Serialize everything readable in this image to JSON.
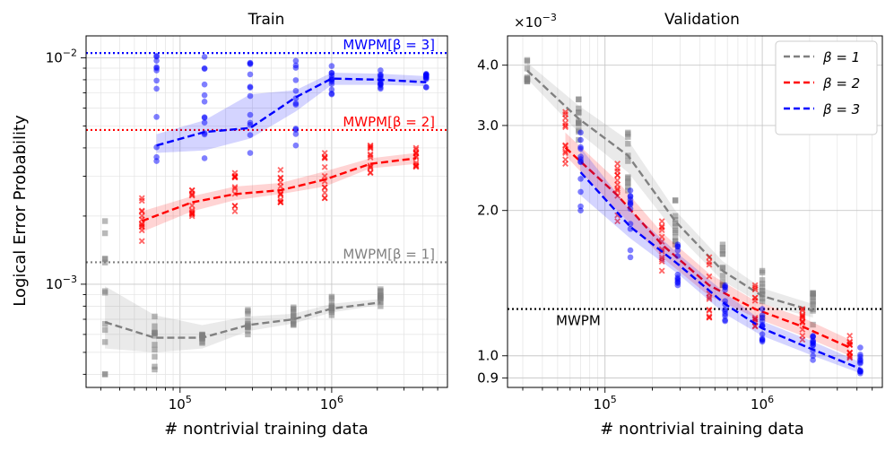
{
  "colors": {
    "gray": "#808080",
    "red": "#ff0000",
    "blue": "#0000ff",
    "black": "#000000"
  },
  "chart_data": [
    {
      "type": "line",
      "panel": "left",
      "title": "Train",
      "xlabel": "# nontrivial training data",
      "ylabel": "Logical Error Probability",
      "xscale": "log",
      "yscale": "log",
      "xlim": [
        24000,
        5800000
      ],
      "ylim": [
        0.00035,
        0.0125
      ],
      "xticks": [
        {
          "value": 100000,
          "base": "10",
          "exp": "5"
        },
        {
          "value": 1000000,
          "base": "10",
          "exp": "6"
        }
      ],
      "yticks": [
        {
          "value": 0.001,
          "base": "10",
          "exp": "−3"
        },
        {
          "value": 0.01,
          "base": "10",
          "exp": "−2"
        }
      ],
      "reference_lines": [
        {
          "label": "MWPM[β = 3]",
          "value": 0.0105,
          "color": "#0000ff"
        },
        {
          "label": "MWPM[β = 2]",
          "value": 0.0048,
          "color": "#ff0000"
        },
        {
          "label": "MWPM[β = 1]",
          "value": 0.00125,
          "color": "#808080"
        }
      ],
      "series": [
        {
          "name": "β = 1",
          "color": "#808080",
          "marker": "square",
          "x": [
            32000,
            68000,
            140000,
            280000,
            560000,
            1000000,
            2100000
          ],
          "y": [
            0.00068,
            0.00058,
            0.00058,
            0.00066,
            0.0007,
            0.00078,
            0.00083
          ],
          "lower": [
            0.00052,
            0.0005,
            0.00052,
            0.00062,
            0.00067,
            0.00075,
            0.00081
          ],
          "upper": [
            0.00098,
            0.00073,
            0.00066,
            0.00072,
            0.00074,
            0.00082,
            0.00086
          ],
          "scatter_min": [
            0.0004,
            0.00042,
            0.00055,
            0.0006,
            0.00066,
            0.00073,
            0.0008
          ],
          "scatter_max": [
            0.0019,
            0.00072,
            0.0006,
            0.00077,
            0.00079,
            0.00088,
            0.00095
          ]
        },
        {
          "name": "β = 2",
          "color": "#ff0000",
          "marker": "x",
          "x": [
            56000,
            120000,
            230000,
            460000,
            900000,
            1800000,
            3600000
          ],
          "y": [
            0.0019,
            0.0023,
            0.0025,
            0.0026,
            0.0029,
            0.0034,
            0.0036
          ],
          "lower": [
            0.0017,
            0.0021,
            0.00235,
            0.0025,
            0.0027,
            0.00325,
            0.0034
          ],
          "upper": [
            0.0021,
            0.00245,
            0.0027,
            0.0028,
            0.00315,
            0.0036,
            0.0038
          ],
          "scatter_min": [
            0.00155,
            0.002,
            0.0021,
            0.0023,
            0.0024,
            0.0031,
            0.0033
          ],
          "scatter_max": [
            0.0024,
            0.0026,
            0.0031,
            0.0032,
            0.0038,
            0.0041,
            0.004
          ]
        },
        {
          "name": "β = 3",
          "color": "#0000ff",
          "marker": "circle",
          "x": [
            70000,
            145000,
            290000,
            580000,
            1000000,
            2100000,
            4200000
          ],
          "y": [
            0.0041,
            0.0047,
            0.0049,
            0.0067,
            0.0081,
            0.008,
            0.0078
          ],
          "lower": [
            0.0038,
            0.0039,
            0.0044,
            0.0058,
            0.0076,
            0.0076,
            0.0075
          ],
          "upper": [
            0.0046,
            0.0053,
            0.0069,
            0.0072,
            0.0086,
            0.0085,
            0.0083
          ],
          "scatter_min": [
            0.0035,
            0.0036,
            0.0038,
            0.0041,
            0.0069,
            0.0073,
            0.0074
          ],
          "scatter_max": [
            0.0102,
            0.0101,
            0.0095,
            0.0097,
            0.0092,
            0.0088,
            0.0085
          ]
        }
      ]
    },
    {
      "type": "line",
      "panel": "right",
      "title": "Validation",
      "xlabel": "# nontrivial training data",
      "ylabel": "",
      "xscale": "log",
      "yscale": "log",
      "ylabel_multiplier": {
        "base": "×10",
        "exp": "−3"
      },
      "xlim": [
        24000,
        5800000
      ],
      "ylim": [
        0.00086,
        0.0046
      ],
      "xticks": [
        {
          "value": 100000,
          "base": "10",
          "exp": "5"
        },
        {
          "value": 1000000,
          "base": "10",
          "exp": "6"
        }
      ],
      "yticks": [
        {
          "value": 0.0009,
          "label": "0.9"
        },
        {
          "value": 0.001,
          "label": "1.0"
        },
        {
          "value": 0.002,
          "label": "2.0"
        },
        {
          "value": 0.003,
          "label": "3.0"
        },
        {
          "value": 0.004,
          "label": "4.0"
        }
      ],
      "reference_lines": [
        {
          "label": "MWPM",
          "value": 0.00125,
          "color": "#000000"
        }
      ],
      "legend": {
        "position": "top-right",
        "entries": [
          "β = 1",
          "β = 2",
          "β = 3"
        ]
      },
      "series": [
        {
          "name": "β = 1",
          "color": "#808080",
          "marker": "square",
          "x": [
            32000,
            68000,
            140000,
            280000,
            560000,
            1000000,
            2100000
          ],
          "y": [
            0.0039,
            0.0031,
            0.0026,
            0.0019,
            0.0015,
            0.00133,
            0.00124
          ],
          "lower": [
            0.00375,
            0.0029,
            0.0024,
            0.0018,
            0.00143,
            0.00128,
            0.0012
          ],
          "upper": [
            0.00405,
            0.0033,
            0.0028,
            0.002,
            0.00157,
            0.00138,
            0.00128
          ],
          "scatter_min": [
            0.0037,
            0.0028,
            0.0022,
            0.0017,
            0.0014,
            0.0012,
            0.00116
          ],
          "scatter_max": [
            0.0041,
            0.0034,
            0.0029,
            0.0021,
            0.0017,
            0.0015,
            0.00135
          ]
        },
        {
          "name": "β = 2",
          "color": "#ff0000",
          "marker": "x",
          "x": [
            56000,
            120000,
            230000,
            460000,
            900000,
            1800000,
            3600000
          ],
          "y": [
            0.0027,
            0.00215,
            0.0017,
            0.0014,
            0.00125,
            0.00115,
            0.00104
          ],
          "lower": [
            0.0026,
            0.002,
            0.0016,
            0.00133,
            0.0012,
            0.0011,
            0.001
          ],
          "upper": [
            0.0029,
            0.0023,
            0.0018,
            0.00148,
            0.0013,
            0.0012,
            0.00108
          ],
          "scatter_min": [
            0.0025,
            0.0019,
            0.0015,
            0.0012,
            0.00115,
            0.00108,
            0.00099
          ],
          "scatter_max": [
            0.0032,
            0.0025,
            0.0019,
            0.0016,
            0.0014,
            0.00125,
            0.0011
          ]
        },
        {
          "name": "β = 3",
          "color": "#0000ff",
          "marker": "circle",
          "x": [
            70000,
            145000,
            290000,
            580000,
            1000000,
            2100000,
            4200000
          ],
          "y": [
            0.0024,
            0.00185,
            0.00155,
            0.00128,
            0.00114,
            0.00103,
            0.00094
          ],
          "lower": [
            0.00215,
            0.00175,
            0.00148,
            0.00122,
            0.0011,
            0.001,
            0.00092
          ],
          "upper": [
            0.0027,
            0.002,
            0.00163,
            0.00135,
            0.00118,
            0.00107,
            0.00097
          ],
          "scatter_min": [
            0.002,
            0.0016,
            0.0014,
            0.00118,
            0.00107,
            0.00098,
            0.00092
          ],
          "scatter_max": [
            0.0029,
            0.0022,
            0.0017,
            0.0014,
            0.00125,
            0.0011,
            0.00104
          ]
        }
      ]
    }
  ]
}
